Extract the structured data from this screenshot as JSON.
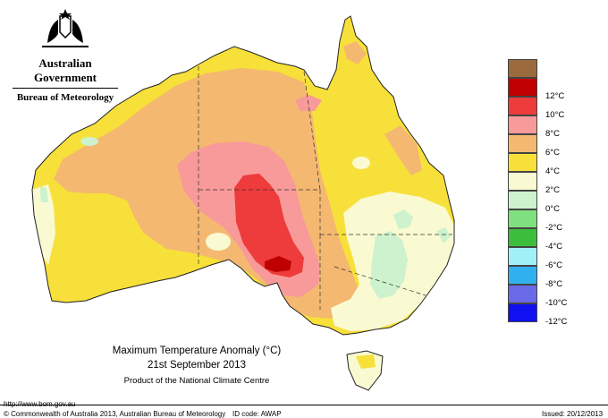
{
  "header": {
    "government": "Australian Government",
    "bureau": "Bureau of Meteorology"
  },
  "map": {
    "title": "Maximum Temperature Anomaly (°C)",
    "date": "21st September 2013",
    "product": "Product of the National Climate Centre"
  },
  "legend": {
    "items": [
      {
        "label": "",
        "color": "#9b6b3e"
      },
      {
        "label": "12°C",
        "color": "#c00000"
      },
      {
        "label": "10°C",
        "color": "#ee3b3b"
      },
      {
        "label": "8°C",
        "color": "#f89a9a"
      },
      {
        "label": "6°C",
        "color": "#f4b870"
      },
      {
        "label": "4°C",
        "color": "#f7e03a"
      },
      {
        "label": "2°C",
        "color": "#fafad2"
      },
      {
        "label": "0°C",
        "color": "#cdf2cd"
      },
      {
        "label": "-2°C",
        "color": "#7fe07f"
      },
      {
        "label": "-4°C",
        "color": "#3cbe3c"
      },
      {
        "label": "-6°C",
        "color": "#a0f0f8"
      },
      {
        "label": "-8°C",
        "color": "#30b0ee"
      },
      {
        "label": "-10°C",
        "color": "#6a6ae8"
      },
      {
        "label": "-12°C",
        "color": "#1010f0"
      }
    ]
  },
  "footer": {
    "url": "http://www.bom.gov.au",
    "copyright": "© Commonwealth of Australia 2013, Australian Bureau of Meteorology",
    "id_code": "ID code: AWAP",
    "issued": "Issued: 20/12/2013"
  }
}
